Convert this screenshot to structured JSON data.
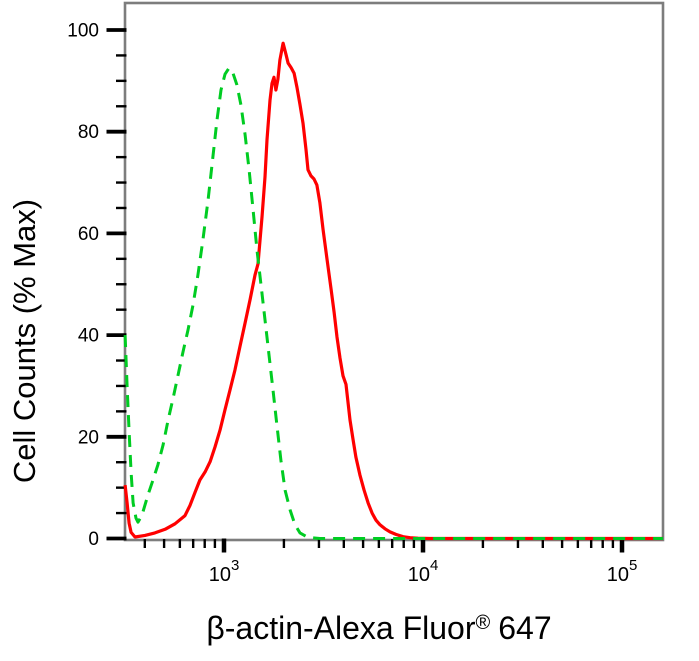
{
  "figure": {
    "background": "#ffffff",
    "plot_border_color": "#7d7d7d",
    "tick_color": "#000000",
    "label_color": "#000000"
  },
  "chart_data": {
    "type": "line",
    "subtype": "flow-cytometry-histogram-overlay",
    "title": "",
    "ylabel": "Cell Counts (% Max)",
    "xlabel": {
      "text": "β-actin-Alexa Fluor",
      "registered_mark": "®",
      "suffix": "647"
    },
    "grid": false,
    "legend": false,
    "x_axis": {
      "scale": "log10",
      "range_log10": [
        2.5025,
        5.206
      ],
      "tick_base": "10",
      "major_tick_exponents": [
        3,
        4,
        5
      ],
      "minor_ticks_per_decade": [
        2,
        3,
        4,
        5,
        6,
        7,
        8,
        9
      ]
    },
    "y_axis": {
      "range": [
        0,
        100
      ],
      "major_ticks": [
        0,
        20,
        40,
        60,
        80,
        100
      ],
      "minor_tick_step": 5
    },
    "series": [
      {
        "name": "red-solid-histogram",
        "color": "#ff0000",
        "width": 3.2,
        "dash": null,
        "points_log10x_pct": [
          [
            2.503,
            10.5
          ],
          [
            2.513,
            7
          ],
          [
            2.523,
            3
          ],
          [
            2.533,
            1.2
          ],
          [
            2.553,
            0.3
          ],
          [
            2.603,
            0.6
          ],
          [
            2.653,
            1.1
          ],
          [
            2.704,
            1.8
          ],
          [
            2.754,
            2.9
          ],
          [
            2.804,
            4.5
          ],
          [
            2.829,
            6.5
          ],
          [
            2.854,
            9
          ],
          [
            2.879,
            11.5
          ],
          [
            2.905,
            13.1
          ],
          [
            2.93,
            15.1
          ],
          [
            2.955,
            18
          ],
          [
            2.98,
            21.3
          ],
          [
            3.005,
            25.3
          ],
          [
            3.03,
            29.2
          ],
          [
            3.055,
            33.1
          ],
          [
            3.08,
            37.7
          ],
          [
            3.106,
            42.4
          ],
          [
            3.131,
            47
          ],
          [
            3.156,
            51.8
          ],
          [
            3.171,
            54
          ],
          [
            3.191,
            63.2
          ],
          [
            3.206,
            71.1
          ],
          [
            3.216,
            78.4
          ],
          [
            3.231,
            86.2
          ],
          [
            3.241,
            89.5
          ],
          [
            3.251,
            90.7
          ],
          [
            3.261,
            88.2
          ],
          [
            3.271,
            90.3
          ],
          [
            3.281,
            94.1
          ],
          [
            3.297,
            97.4
          ],
          [
            3.312,
            95.1
          ],
          [
            3.322,
            93.5
          ],
          [
            3.337,
            92.6
          ],
          [
            3.352,
            91.5
          ],
          [
            3.367,
            88.7
          ],
          [
            3.382,
            85.3
          ],
          [
            3.397,
            81.7
          ],
          [
            3.412,
            76.5
          ],
          [
            3.422,
            72.5
          ],
          [
            3.437,
            71.3
          ],
          [
            3.452,
            70.7
          ],
          [
            3.467,
            69.5
          ],
          [
            3.482,
            66
          ],
          [
            3.498,
            60.7
          ],
          [
            3.518,
            54.8
          ],
          [
            3.538,
            49
          ],
          [
            3.553,
            44.5
          ],
          [
            3.568,
            39.6
          ],
          [
            3.583,
            35.5
          ],
          [
            3.598,
            32
          ],
          [
            3.613,
            30.3
          ],
          [
            3.633,
            23.3
          ],
          [
            3.648,
            19.5
          ],
          [
            3.663,
            16
          ],
          [
            3.683,
            12.5
          ],
          [
            3.704,
            9.5
          ],
          [
            3.724,
            7
          ],
          [
            3.744,
            5
          ],
          [
            3.764,
            3.6
          ],
          [
            3.784,
            2.7
          ],
          [
            3.809,
            1.9
          ],
          [
            3.834,
            1.3
          ],
          [
            3.864,
            0.8
          ],
          [
            3.9,
            0.35
          ],
          [
            3.935,
            0.15
          ],
          [
            3.975,
            0.05
          ],
          [
            4.035,
            0
          ],
          [
            5.206,
            0
          ]
        ]
      },
      {
        "name": "green-dashed-histogram",
        "color": "#00cc22",
        "width": 3,
        "dash": [
          12,
          8
        ],
        "points_log10x_pct": [
          [
            2.503,
            40
          ],
          [
            2.513,
            30
          ],
          [
            2.523,
            21
          ],
          [
            2.533,
            13
          ],
          [
            2.543,
            7
          ],
          [
            2.558,
            4
          ],
          [
            2.568,
            3.2
          ],
          [
            2.588,
            4.6
          ],
          [
            2.618,
            8.6
          ],
          [
            2.643,
            11.5
          ],
          [
            2.668,
            14.5
          ],
          [
            2.694,
            18.4
          ],
          [
            2.719,
            23.3
          ],
          [
            2.744,
            27.6
          ],
          [
            2.769,
            32.1
          ],
          [
            2.794,
            36.7
          ],
          [
            2.819,
            41
          ],
          [
            2.844,
            45.9
          ],
          [
            2.869,
            51.8
          ],
          [
            2.894,
            58.7
          ],
          [
            2.92,
            66.6
          ],
          [
            2.945,
            75.4
          ],
          [
            2.965,
            82.3
          ],
          [
            2.985,
            88.2
          ],
          [
            3.005,
            91.3
          ],
          [
            3.025,
            92.5
          ],
          [
            3.045,
            91.5
          ],
          [
            3.065,
            89.2
          ],
          [
            3.085,
            85.3
          ],
          [
            3.106,
            79.4
          ],
          [
            3.126,
            72.5
          ],
          [
            3.146,
            64.6
          ],
          [
            3.166,
            56.7
          ],
          [
            3.186,
            49.9
          ],
          [
            3.206,
            43
          ],
          [
            3.226,
            36.1
          ],
          [
            3.246,
            29.2
          ],
          [
            3.266,
            22.3
          ],
          [
            3.286,
            15.4
          ],
          [
            3.307,
            9.5
          ],
          [
            3.332,
            5.6
          ],
          [
            3.357,
            2.7
          ],
          [
            3.382,
            1.1
          ],
          [
            3.422,
            0.2
          ],
          [
            3.482,
            0
          ],
          [
            5.206,
            0
          ]
        ]
      }
    ]
  }
}
